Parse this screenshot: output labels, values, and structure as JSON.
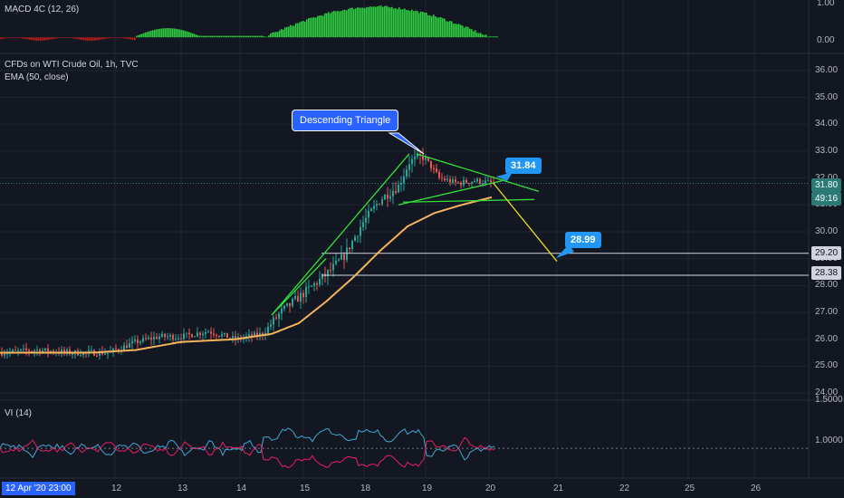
{
  "panes": {
    "macd": {
      "title": "MACD 4C (12, 26)",
      "ticks": [
        "1.00",
        "0.00"
      ]
    },
    "price": {
      "title": "CFDs on WTI Crude Oil, 1h, TVC",
      "ema_label": "EMA (50, close)",
      "ticks": [
        "36.00",
        "35.00",
        "34.00",
        "33.00",
        "32.00",
        "31.00",
        "30.00",
        "29.00",
        "28.00",
        "27.00",
        "26.00",
        "25.00",
        "24.00"
      ],
      "last_price": "31.80",
      "countdown": "49:16",
      "levels": [
        "29.20",
        "28.38"
      ]
    },
    "vi": {
      "title": "VI (14)",
      "ticks": [
        "1.5000",
        "1.0000"
      ]
    }
  },
  "annotations": {
    "pattern_label": "Descending Triangle",
    "target_top": "31.84",
    "target_bottom": "28.99"
  },
  "xaxis": {
    "cursor_date": "12 Apr '20   23:00",
    "dates": [
      "12",
      "13",
      "14",
      "15",
      "18",
      "19",
      "20",
      "21",
      "22",
      "25",
      "26"
    ]
  },
  "colors": {
    "background": "#131722",
    "up_candle": "#26a69a",
    "down_candle": "#ef5350",
    "ema": "#f5b35c",
    "pattern_lines": "#33e03a",
    "projection": "#e6e21f",
    "macd_up": "#2ecc40",
    "macd_down": "#b71c1c",
    "vi_plus": "#3fa7d6",
    "vi_minus": "#e91e63",
    "callout": "#2962ff",
    "target_tag": "#2196f3"
  },
  "chart_data": {
    "type": "candlestick",
    "symbol": "CFDs on WTI Crude Oil",
    "timeframe": "1h",
    "x_dates": [
      "12",
      "13",
      "14",
      "15",
      "18",
      "19",
      "20",
      "21",
      "22",
      "25",
      "26"
    ],
    "ylim": [
      23.8,
      36.6
    ],
    "price_path": [
      [
        0,
        25.5
      ],
      [
        40,
        25.6
      ],
      [
        80,
        25.5
      ],
      [
        120,
        25.5
      ],
      [
        150,
        25.9
      ],
      [
        175,
        26.1
      ],
      [
        200,
        26.1
      ],
      [
        230,
        26.3
      ],
      [
        260,
        26.0
      ],
      [
        290,
        26.2
      ],
      [
        310,
        27.0
      ],
      [
        335,
        27.7
      ],
      [
        360,
        28.4
      ],
      [
        380,
        29.1
      ],
      [
        400,
        30.3
      ],
      [
        420,
        31.2
      ],
      [
        440,
        31.7
      ],
      [
        452,
        32.6
      ],
      [
        468,
        32.8
      ],
      [
        485,
        32.0
      ],
      [
        505,
        31.8
      ],
      [
        525,
        31.9
      ],
      [
        545,
        31.8
      ]
    ],
    "ema_path": [
      [
        0,
        25.5
      ],
      [
        100,
        25.5
      ],
      [
        150,
        25.6
      ],
      [
        200,
        25.9
      ],
      [
        260,
        26.0
      ],
      [
        300,
        26.2
      ],
      [
        330,
        26.6
      ],
      [
        360,
        27.4
      ],
      [
        390,
        28.3
      ],
      [
        420,
        29.3
      ],
      [
        450,
        30.2
      ],
      [
        480,
        30.7
      ],
      [
        510,
        31.0
      ],
      [
        545,
        31.3
      ]
    ],
    "levels": [
      29.2,
      28.38
    ],
    "last_price": 31.8,
    "pattern": {
      "name": "Descending Triangle",
      "lines": [
        [
          [
            300,
            26.9
          ],
          [
            452,
            32.9
          ]
        ],
        [
          [
            300,
            26.9
          ],
          [
            360,
            29.0
          ]
        ],
        [
          [
            460,
            32.9
          ],
          [
            595,
            31.5
          ]
        ],
        [
          [
            445,
            31.1
          ],
          [
            590,
            31.2
          ]
        ],
        [
          [
            440,
            31.0
          ],
          [
            555,
            31.9
          ]
        ]
      ],
      "projection": [
        [
          545,
          31.8
        ],
        [
          615,
          28.9
        ]
      ],
      "targets": [
        31.84,
        28.99
      ]
    },
    "macd_ylim": [
      -0.2,
      1.1
    ],
    "vi_ylim": [
      0.7,
      1.5
    ]
  }
}
